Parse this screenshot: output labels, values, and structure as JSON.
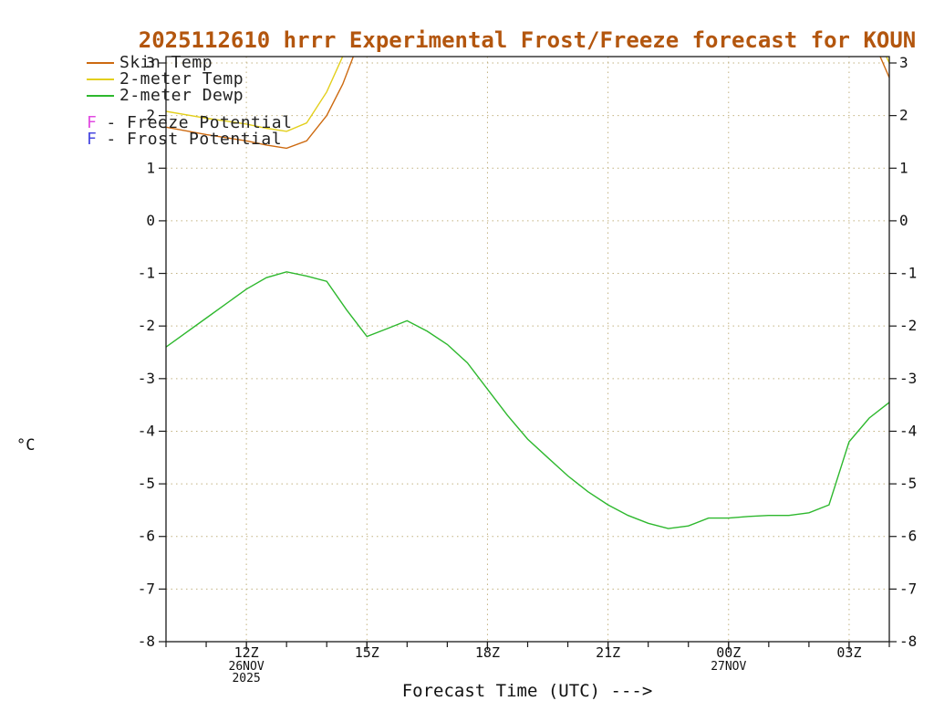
{
  "colors": {
    "title": "#b3560e",
    "grid": "#c2b280",
    "axis": "#1a1a1a",
    "text": "#111111",
    "background": "#ffffff"
  },
  "title": "2025112610 hrrr Experimental Frost/Freeze forecast for KOUN",
  "legend": {
    "items": [
      {
        "label": "Skin Temp",
        "color": "#cd6a10"
      },
      {
        "label": "2-meter Temp",
        "color": "#e3cf1c"
      },
      {
        "label": "2-meter Dewp",
        "color": "#2eb82e"
      },
      {
        "marker": "F",
        "label": "- Freeze Potential",
        "color": "#e14ae1"
      },
      {
        "marker": "F",
        "label": "- Frost Potential",
        "color": "#4848e0"
      }
    ]
  },
  "axes": {
    "ylabel": "°C",
    "xlabel": "Forecast Time (UTC) --->"
  },
  "chart_data": {
    "type": "line",
    "title": "2025112610 hrrr Experimental Frost/Freeze forecast for KOUN",
    "xlabel": "Forecast Time (UTC) --->",
    "ylabel": "°C",
    "x_unit": "hours UTC (24 = 00Z 27NOV)",
    "xlim": [
      10,
      28
    ],
    "ylim": [
      -8,
      3
    ],
    "grid": true,
    "legend_position": "top-left",
    "yticks": [
      3,
      2,
      1,
      0,
      -1,
      -2,
      -3,
      -4,
      -5,
      -6,
      -7,
      -8
    ],
    "xticks": {
      "minor_step": 1,
      "major": [
        {
          "t": 12,
          "label": "12Z",
          "sub": [
            "26NOV",
            "2025"
          ]
        },
        {
          "t": 15,
          "label": "15Z",
          "sub": []
        },
        {
          "t": 18,
          "label": "18Z",
          "sub": []
        },
        {
          "t": 21,
          "label": "21Z",
          "sub": []
        },
        {
          "t": 24,
          "label": "00Z",
          "sub": [
            "27NOV"
          ]
        },
        {
          "t": 27,
          "label": "03Z",
          "sub": []
        }
      ]
    },
    "series": [
      {
        "name": "Skin Temp",
        "color": "#cd6a10",
        "segments": [
          [
            [
              10,
              1.78
            ],
            [
              11,
              1.64
            ],
            [
              12,
              1.52
            ],
            [
              12.5,
              1.44
            ],
            [
              13,
              1.38
            ],
            [
              13.5,
              1.52
            ],
            [
              14,
              2.0
            ],
            [
              14.4,
              2.6
            ],
            [
              14.75,
              3.3
            ]
          ],
          [
            [
              27.7,
              3.25
            ],
            [
              28,
              2.72
            ]
          ]
        ]
      },
      {
        "name": "2-meter Temp",
        "color": "#e3cf1c",
        "segments": [
          [
            [
              10,
              2.08
            ],
            [
              11,
              1.95
            ],
            [
              12,
              1.84
            ],
            [
              12.5,
              1.76
            ],
            [
              13,
              1.7
            ],
            [
              13.5,
              1.86
            ],
            [
              14,
              2.45
            ],
            [
              14.5,
              3.3
            ]
          ],
          [
            [
              27.85,
              3.25
            ],
            [
              28,
              3.0
            ]
          ]
        ]
      },
      {
        "name": "2-meter Dewp",
        "color": "#2eb82e",
        "segments": [
          [
            [
              10,
              -2.4
            ],
            [
              11,
              -1.85
            ],
            [
              12,
              -1.3
            ],
            [
              12.5,
              -1.08
            ],
            [
              13,
              -0.97
            ],
            [
              13.5,
              -1.05
            ],
            [
              14,
              -1.15
            ],
            [
              14.5,
              -1.7
            ],
            [
              15,
              -2.2
            ],
            [
              15.5,
              -2.05
            ],
            [
              16,
              -1.9
            ],
            [
              16.5,
              -2.1
            ],
            [
              17,
              -2.35
            ],
            [
              17.5,
              -2.7
            ],
            [
              18,
              -3.2
            ],
            [
              18.5,
              -3.7
            ],
            [
              19,
              -4.15
            ],
            [
              19.5,
              -4.5
            ],
            [
              20,
              -4.85
            ],
            [
              20.5,
              -5.15
            ],
            [
              21,
              -5.4
            ],
            [
              21.5,
              -5.6
            ],
            [
              22,
              -5.75
            ],
            [
              22.5,
              -5.85
            ],
            [
              23,
              -5.8
            ],
            [
              23.5,
              -5.65
            ],
            [
              24,
              -5.65
            ],
            [
              24.5,
              -5.62
            ],
            [
              25,
              -5.6
            ],
            [
              25.5,
              -5.6
            ],
            [
              26,
              -5.55
            ],
            [
              26.5,
              -5.4
            ],
            [
              27,
              -4.2
            ],
            [
              27.5,
              -3.75
            ],
            [
              28,
              -3.45
            ]
          ]
        ]
      }
    ]
  }
}
